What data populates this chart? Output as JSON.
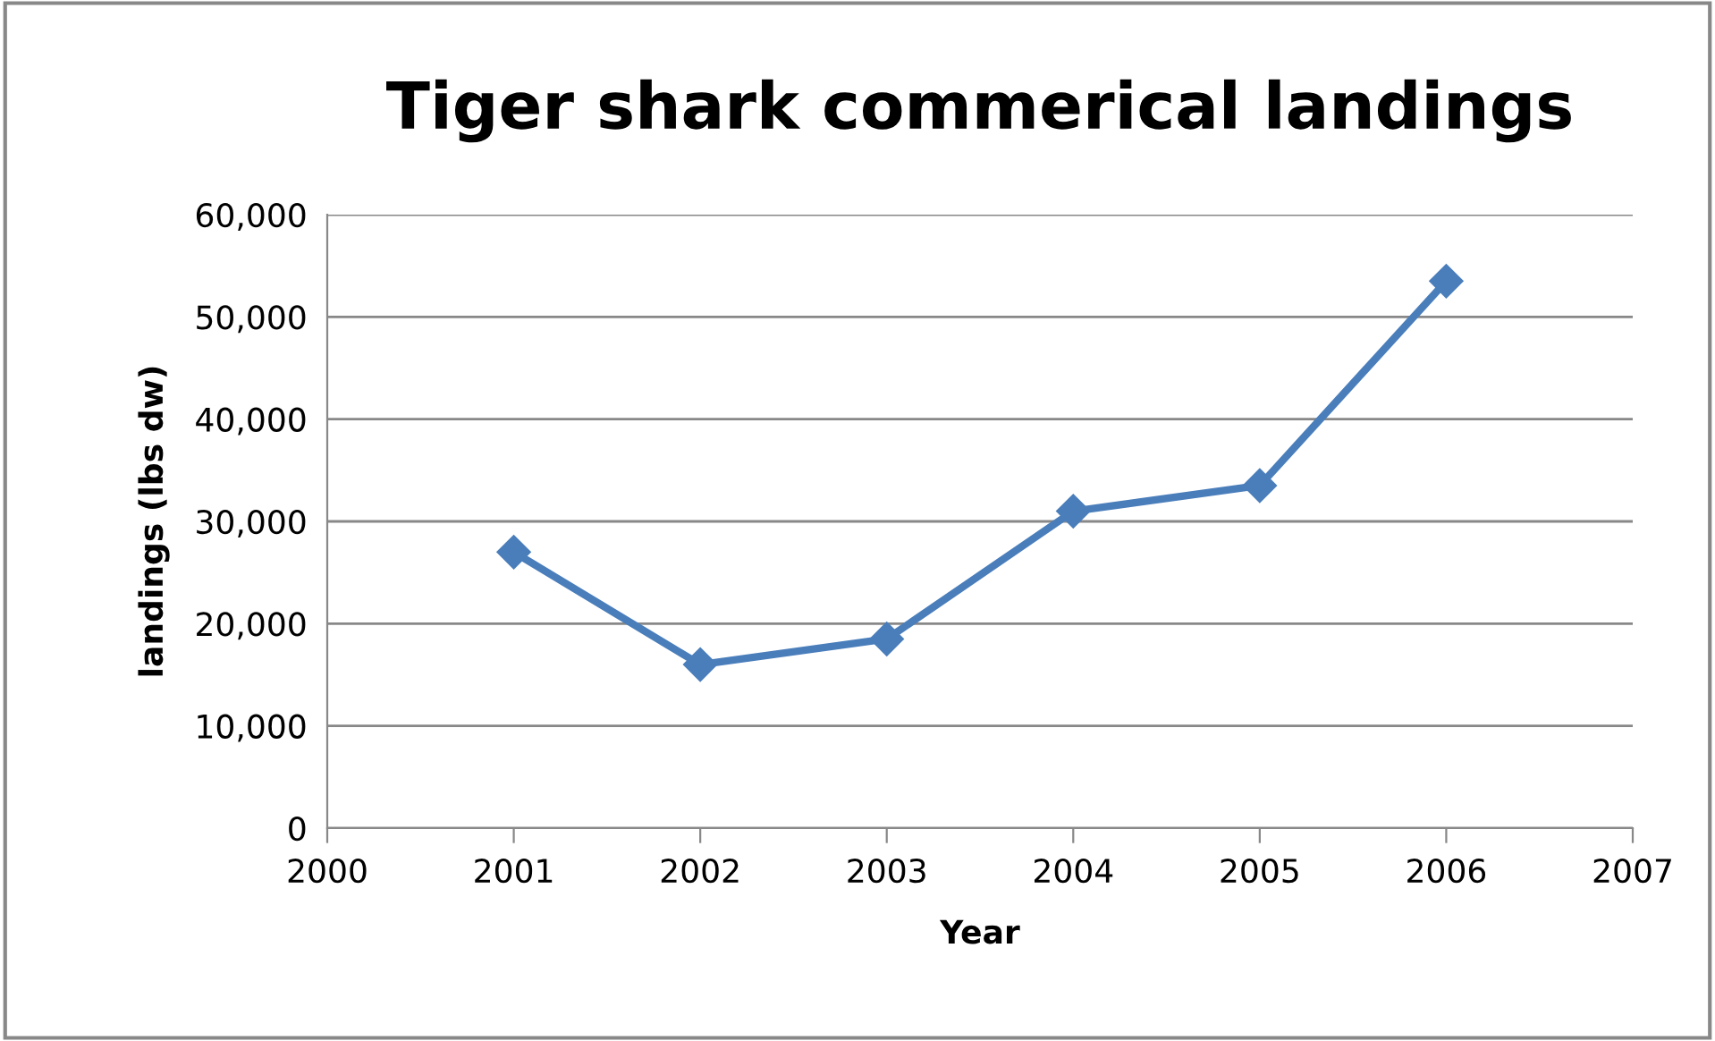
{
  "chart_data": {
    "type": "line",
    "title": "Tiger shark commerical landings",
    "xlabel": "Year",
    "ylabel": "landings (lbs dw)",
    "x": [
      2001,
      2002,
      2003,
      2004,
      2005,
      2006
    ],
    "series": [
      {
        "color": "#4a7ebb",
        "values": [
          27000,
          16000,
          18500,
          31000,
          33500,
          53500
        ]
      }
    ],
    "xlim": [
      2000,
      2007
    ],
    "xticks": [
      2000,
      2001,
      2002,
      2003,
      2004,
      2005,
      2006,
      2007
    ],
    "ylim": [
      0,
      60000
    ],
    "yticks": [
      {
        "value": 0,
        "label": "0"
      },
      {
        "value": 10000,
        "label": "10,000"
      },
      {
        "value": 20000,
        "label": "20,000"
      },
      {
        "value": 30000,
        "label": "30,000"
      },
      {
        "value": 40000,
        "label": "40,000"
      },
      {
        "value": 50000,
        "label": "50,000"
      },
      {
        "value": 60000,
        "label": "60,000"
      }
    ],
    "grid": "y",
    "marker": "diamond",
    "line_style": "solid",
    "legend": false
  }
}
